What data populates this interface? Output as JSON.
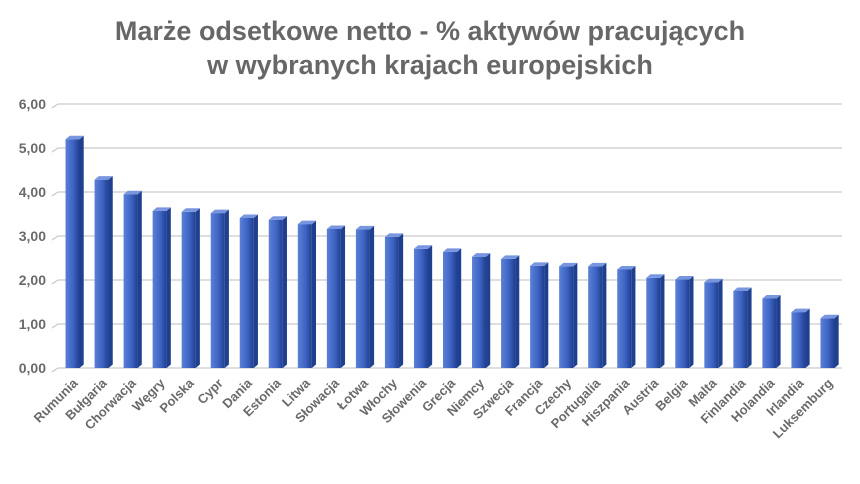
{
  "chart_data": {
    "type": "bar",
    "title": "Marże odsetkowe netto - % aktywów pracujących",
    "subtitle": "w wybranych krajach europejskich",
    "categories": [
      "Rumunia",
      "Bułgaria",
      "Chorwacja",
      "Węgry",
      "Polska",
      "Cypr",
      "Dania",
      "Estonia",
      "Litwa",
      "Słowacja",
      "Łotwa",
      "Włochy",
      "Słowenia",
      "Grecja",
      "Niemcy",
      "Szwecja",
      "Francja",
      "Czechy",
      "Portugalia",
      "Hiszpania",
      "Austria",
      "Belgia",
      "Malta",
      "Finlandia",
      "Holandia",
      "Irlandia",
      "Luksemburg"
    ],
    "values": [
      5.2,
      4.28,
      3.95,
      3.57,
      3.55,
      3.52,
      3.41,
      3.37,
      3.27,
      3.16,
      3.15,
      2.98,
      2.71,
      2.64,
      2.53,
      2.48,
      2.32,
      2.31,
      2.31,
      2.24,
      2.05,
      2.01,
      1.95,
      1.75,
      1.58,
      1.27,
      1.13
    ],
    "y_tick_labels": [
      "0,00",
      "1,00",
      "2,00",
      "3,00",
      "4,00",
      "5,00",
      "6,00"
    ],
    "ylim": [
      0,
      6
    ],
    "grid": true,
    "legend": "none",
    "colors": {
      "bar_light": "#5a80d6",
      "bar_mid": "#3e64c4",
      "bar_dark": "#1f3f8f",
      "bar_top": "#7896e0",
      "grid": "#c9c9c9",
      "text": "#6a6a6a",
      "title": "#676767"
    }
  }
}
